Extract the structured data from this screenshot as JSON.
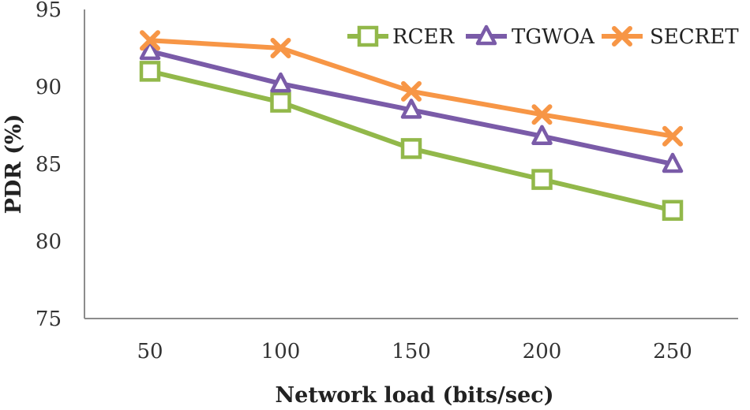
{
  "chart_data": {
    "type": "line",
    "title": "",
    "xlabel": "Network load (bits/sec)",
    "ylabel": "PDR (%)",
    "categories": [
      "50",
      "100",
      "150",
      "200",
      "250"
    ],
    "ylim": [
      75,
      95
    ],
    "yticks": [
      "75",
      "80",
      "85",
      "90",
      "95"
    ],
    "grid": false,
    "legend_position": "top-right",
    "series": [
      {
        "name": "RCER",
        "color": "#92b84a",
        "marker": "square",
        "values": [
          91,
          89,
          86,
          84,
          82
        ]
      },
      {
        "name": "TGWOA",
        "color": "#7a5ba8",
        "marker": "triangle",
        "values": [
          92.3,
          90.2,
          88.5,
          86.8,
          85
        ]
      },
      {
        "name": "SECRET",
        "color": "#f79646",
        "marker": "x",
        "values": [
          93,
          92.5,
          89.7,
          88.2,
          86.8
        ]
      }
    ]
  }
}
